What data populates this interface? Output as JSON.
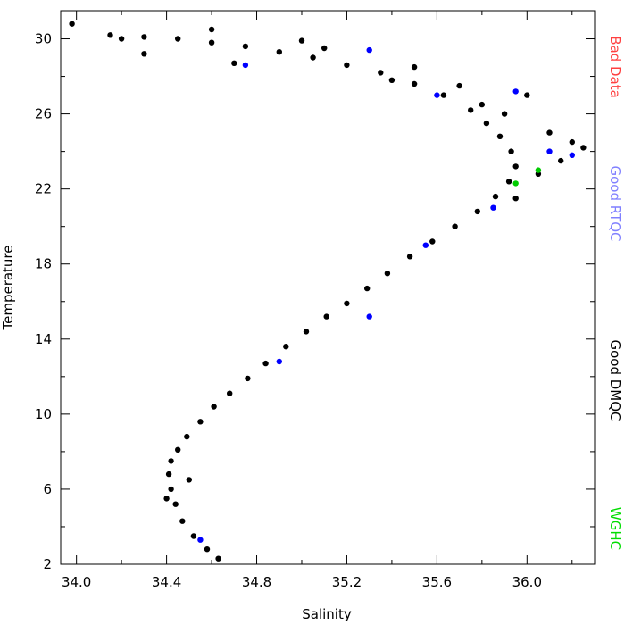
{
  "chart_data": {
    "type": "scatter",
    "xlabel": "Salinity",
    "ylabel": "Temperature",
    "xlim": [
      33.93,
      36.3
    ],
    "ylim": [
      2,
      31.5
    ],
    "xticks": [
      34.0,
      34.4,
      34.8,
      35.2,
      35.6,
      36.0
    ],
    "xtick_labels": [
      "34.0",
      "34.4",
      "34.8",
      "35.2",
      "35.6",
      "36.0"
    ],
    "yticks": [
      2,
      6,
      10,
      14,
      18,
      22,
      26,
      30
    ],
    "ytick_labels": [
      "2",
      "6",
      "10",
      "14",
      "18",
      "22",
      "26",
      "30"
    ],
    "grid": false,
    "legend_position": "right side, vertical",
    "series": [
      {
        "name": "Good DMQC",
        "color": "#000000",
        "x": [
          34.63,
          34.58,
          34.52,
          34.47,
          34.44,
          34.42,
          34.41,
          34.42,
          34.45,
          34.49,
          34.55,
          34.61,
          34.68,
          34.76,
          34.84,
          34.93,
          35.02,
          35.11,
          35.2,
          35.29,
          35.38,
          35.48,
          35.58,
          35.68,
          35.78,
          35.86,
          35.92,
          35.95,
          35.93,
          35.88,
          35.82,
          35.75,
          35.63,
          35.5,
          35.35,
          35.2,
          35.05,
          34.9,
          34.75,
          34.6,
          34.45,
          34.3,
          34.15,
          33.98,
          34.3,
          34.7,
          35.1,
          35.5,
          35.9,
          36.1,
          36.2,
          36.25,
          36.15,
          36.05,
          35.95,
          35.7,
          35.4,
          35.0,
          34.6,
          34.2,
          34.4,
          34.5,
          35.8,
          36.0
        ],
        "y": [
          2.3,
          2.8,
          3.5,
          4.3,
          5.2,
          6.0,
          6.8,
          7.5,
          8.1,
          8.8,
          9.6,
          10.4,
          11.1,
          11.9,
          12.7,
          13.6,
          14.4,
          15.2,
          15.9,
          16.7,
          17.5,
          18.4,
          19.2,
          20.0,
          20.8,
          21.6,
          22.4,
          23.2,
          24.0,
          24.8,
          25.5,
          26.2,
          27.0,
          27.6,
          28.2,
          28.6,
          29.0,
          29.3,
          29.6,
          29.8,
          30.0,
          30.1,
          30.2,
          30.8,
          29.2,
          28.7,
          29.5,
          28.5,
          26.0,
          25.0,
          24.5,
          24.2,
          23.5,
          22.8,
          21.5,
          27.5,
          27.8,
          29.9,
          30.5,
          30.0,
          5.5,
          6.5,
          26.5,
          27.0
        ]
      },
      {
        "name": "Good RTQC",
        "color": "#0000ff",
        "x": [
          34.55,
          34.9,
          35.3,
          35.55,
          35.85,
          36.1,
          36.2,
          35.95,
          35.6,
          35.3,
          34.75
        ],
        "y": [
          3.3,
          12.8,
          15.2,
          19.0,
          21.0,
          24.0,
          23.8,
          27.2,
          27.0,
          29.4,
          28.6
        ]
      },
      {
        "name": "WGHC",
        "color": "#00cc00",
        "x": [
          35.95,
          36.05
        ],
        "y": [
          22.3,
          23.0
        ]
      }
    ],
    "legend": [
      {
        "label": "Bad Data",
        "color": "#ff4040"
      },
      {
        "label": "Good RTQC",
        "color": "#8080ff"
      },
      {
        "label": "Good DMQC",
        "color": "#000000"
      },
      {
        "label": "WGHC",
        "color": "#00dd00"
      }
    ]
  }
}
